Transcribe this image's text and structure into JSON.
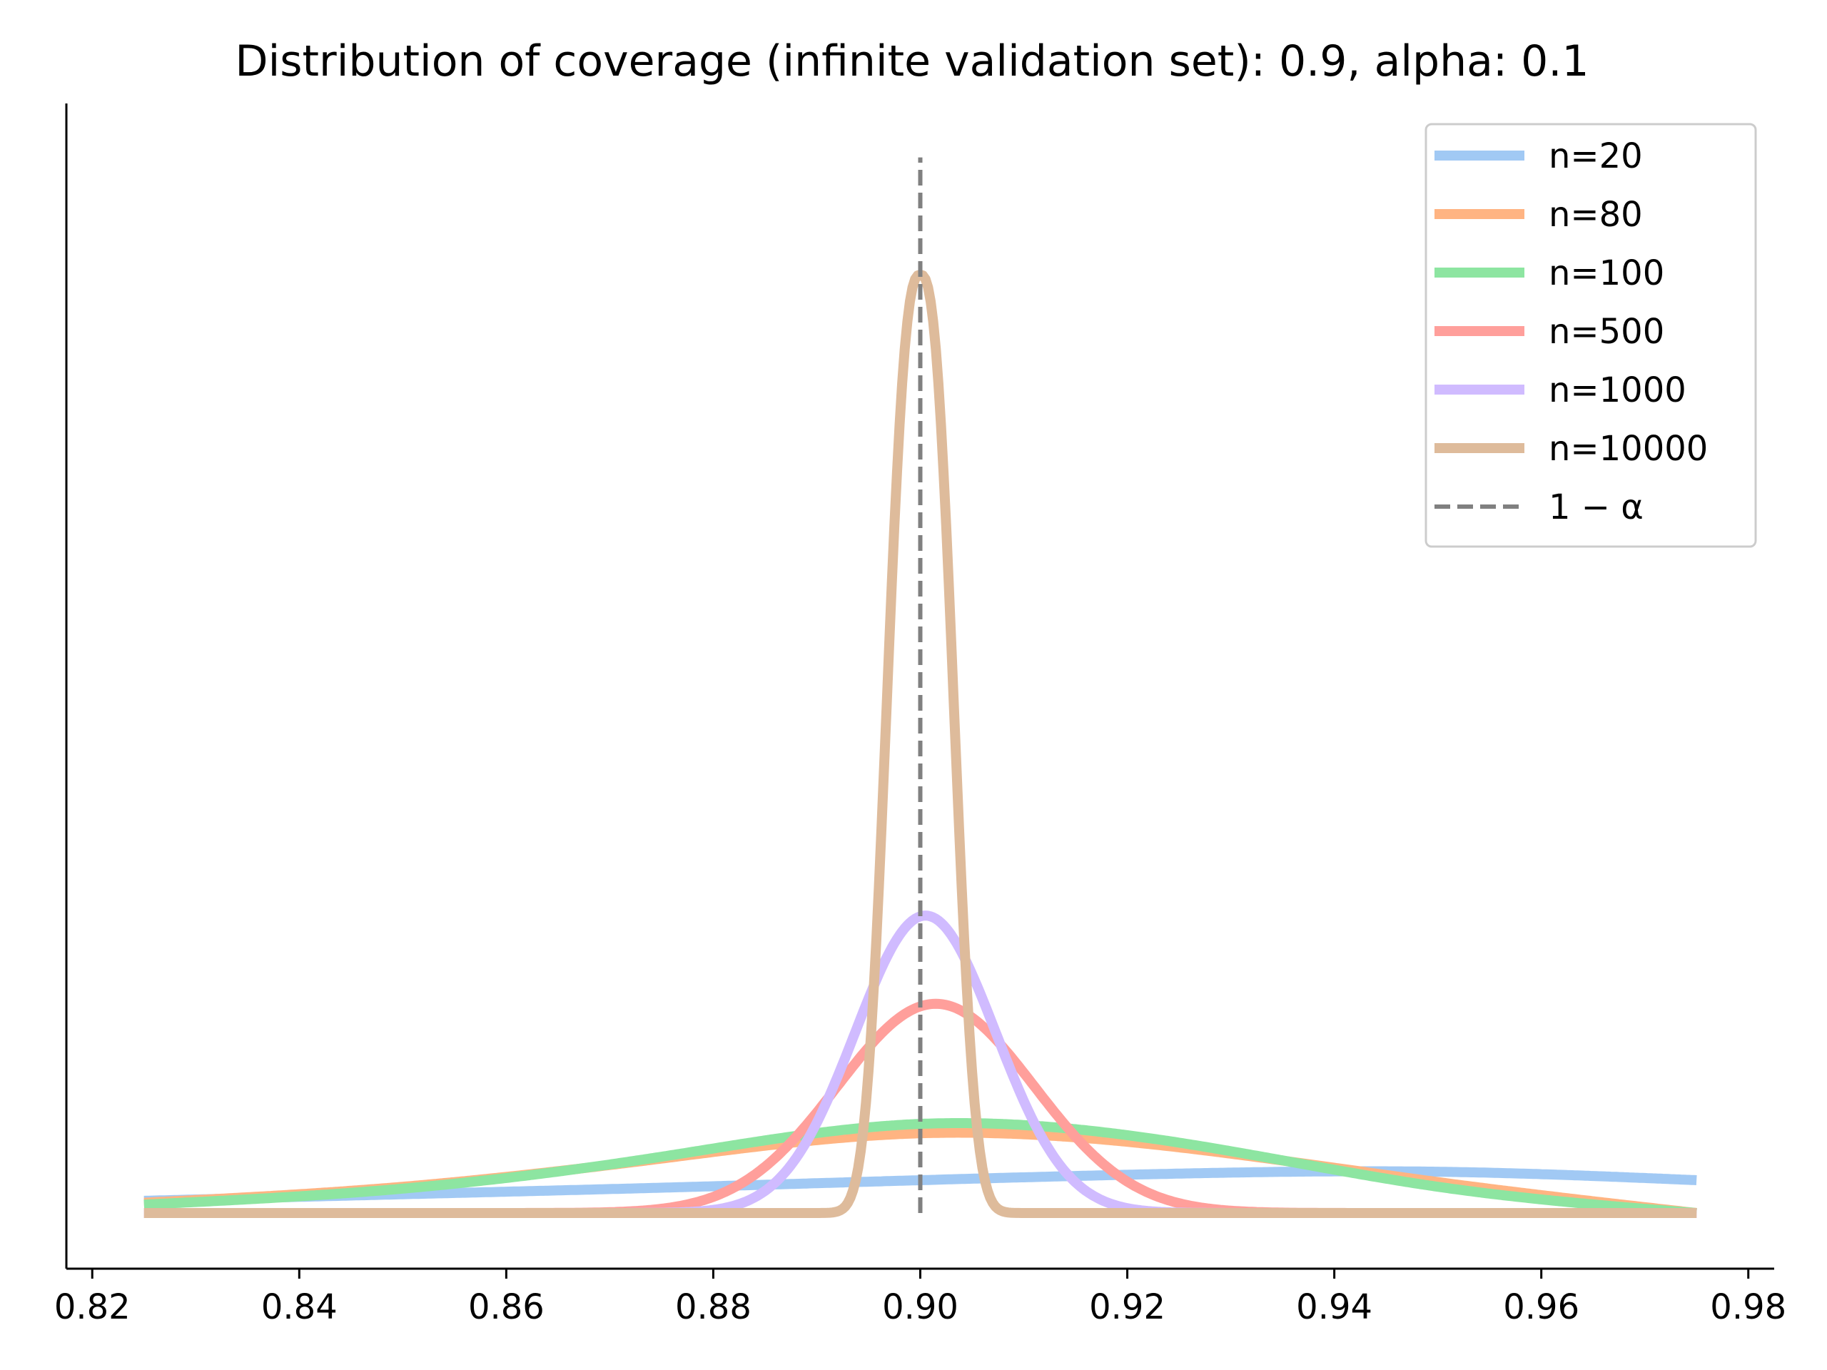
{
  "chart_data": {
    "type": "line",
    "title": "Distribution of coverage (infinite validation set): 0.9, alpha: 0.1",
    "xlabel": "",
    "ylabel": "",
    "xlim": [
      0.8175,
      0.9825
    ],
    "ylim": [
      0,
      1.0
    ],
    "x_range_data": [
      0.825,
      0.975
    ],
    "x_ticks": [
      {
        "value": 0.82,
        "label": "0.82"
      },
      {
        "value": 0.84,
        "label": "0.84"
      },
      {
        "value": 0.86,
        "label": "0.86"
      },
      {
        "value": 0.88,
        "label": "0.88"
      },
      {
        "value": 0.9,
        "label": "0.90"
      },
      {
        "value": 0.92,
        "label": "0.92"
      },
      {
        "value": 0.94,
        "label": "0.94"
      },
      {
        "value": 0.96,
        "label": "0.96"
      },
      {
        "value": 0.98,
        "label": "0.98"
      }
    ],
    "y_ticks_visible": false,
    "grid": false,
    "legend_position": "top-right",
    "series": [
      {
        "name": "n=20",
        "label": "n=20",
        "color": "#a1c9f4",
        "style": "solid",
        "x": [
          0.825,
          0.85,
          0.875,
          0.9,
          0.925,
          0.95,
          0.975
        ],
        "values": [
          0.013,
          0.02,
          0.027,
          0.035,
          0.042,
          0.044,
          0.035
        ]
      },
      {
        "name": "n=80",
        "label": "n=80",
        "color": "#ffb482",
        "style": "solid",
        "x": [
          0.825,
          0.85,
          0.875,
          0.9,
          0.925,
          0.95,
          0.975
        ],
        "values": [
          0.011,
          0.028,
          0.058,
          0.085,
          0.07,
          0.033,
          0.0
        ]
      },
      {
        "name": "n=100",
        "label": "n=100",
        "color": "#8de5a1",
        "style": "solid",
        "x": [
          0.825,
          0.85,
          0.875,
          0.9,
          0.925,
          0.95,
          0.975
        ],
        "values": [
          0.009,
          0.026,
          0.06,
          0.095,
          0.075,
          0.028,
          0.0
        ]
      },
      {
        "name": "n=500",
        "label": "n=500",
        "color": "#ff9f9b",
        "style": "solid",
        "x": [
          0.825,
          0.85,
          0.875,
          0.9,
          0.925,
          0.95,
          0.975
        ],
        "values": [
          0.0,
          0.001,
          0.05,
          0.223,
          0.055,
          0.001,
          0.0
        ]
      },
      {
        "name": "n=1000",
        "label": "n=1000",
        "color": "#d0bbff",
        "style": "solid",
        "x": [
          0.825,
          0.85,
          0.875,
          0.9,
          0.925,
          0.95,
          0.975
        ],
        "values": [
          0.0,
          0.0,
          0.022,
          0.317,
          0.025,
          0.0,
          0.0
        ]
      },
      {
        "name": "n=10000",
        "label": "n=10000",
        "color": "#debb9b",
        "style": "solid",
        "x": [
          0.825,
          0.85,
          0.875,
          0.9,
          0.925,
          0.95,
          0.975
        ],
        "values": [
          0.0,
          0.0,
          0.0,
          1.0,
          0.0,
          0.0,
          0.0
        ]
      }
    ],
    "vline": {
      "x": 0.9,
      "label": "1 − α",
      "color": "#808080",
      "style": "dashed",
      "y_top": 1.125
    }
  }
}
